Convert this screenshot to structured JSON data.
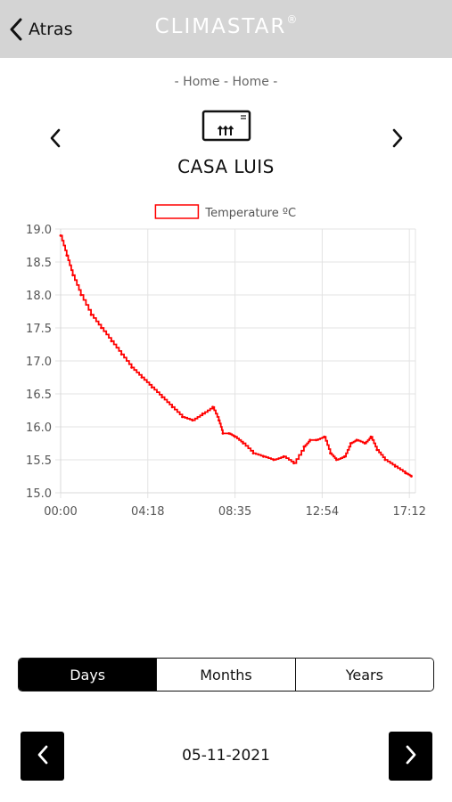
{
  "header": {
    "back_label": "Atras",
    "brand": "CLIMASTAR",
    "brand_mark": "®"
  },
  "breadcrumb": "- Home - Home -",
  "device": {
    "name": "CASA LUIS",
    "icon": "heater-device-icon"
  },
  "chart_data": {
    "type": "line",
    "legend": [
      "Temperature ºC"
    ],
    "legend_position": "top-center",
    "grid": true,
    "x_tick_labels": [
      "00:00",
      "04:18",
      "08:35",
      "12:54",
      "17:12"
    ],
    "x_unit": "hours since 00:00",
    "xlim": [
      0,
      17.5
    ],
    "ylim": [
      15.0,
      19.0
    ],
    "y_ticks": [
      15.0,
      15.5,
      16.0,
      16.5,
      17.0,
      17.5,
      18.0,
      18.5,
      19.0
    ],
    "series": [
      {
        "name": "Temperature ºC",
        "color": "#ff0000",
        "x": [
          0,
          0.3,
          0.6,
          1.0,
          1.5,
          2.0,
          2.5,
          3.0,
          3.5,
          4.0,
          4.5,
          5.0,
          5.5,
          6.0,
          6.5,
          7.0,
          7.5,
          7.8,
          8.0,
          8.3,
          8.6,
          9.0,
          9.5,
          10.0,
          10.5,
          11.0,
          11.5,
          12.0,
          12.3,
          12.6,
          13.0,
          13.3,
          13.6,
          14.0,
          14.3,
          14.6,
          15.0,
          15.3,
          15.6,
          16.0,
          16.5,
          17.0,
          17.3
        ],
        "y": [
          18.9,
          18.6,
          18.3,
          18.0,
          17.7,
          17.5,
          17.3,
          17.1,
          16.9,
          16.75,
          16.6,
          16.45,
          16.3,
          16.15,
          16.1,
          16.2,
          16.3,
          16.1,
          15.9,
          15.9,
          15.85,
          15.75,
          15.6,
          15.55,
          15.5,
          15.55,
          15.45,
          15.7,
          15.8,
          15.8,
          15.85,
          15.6,
          15.5,
          15.55,
          15.75,
          15.8,
          15.75,
          15.85,
          15.65,
          15.5,
          15.4,
          15.3,
          15.25
        ]
      }
    ]
  },
  "period_tabs": [
    {
      "label": "Days",
      "active": true
    },
    {
      "label": "Months",
      "active": false
    },
    {
      "label": "Years",
      "active": false
    }
  ],
  "date_nav": {
    "date": "05-11-2021"
  },
  "colors": {
    "header_bg": "#d4d4d4",
    "accent": "#000000",
    "series": "#ff0000"
  }
}
